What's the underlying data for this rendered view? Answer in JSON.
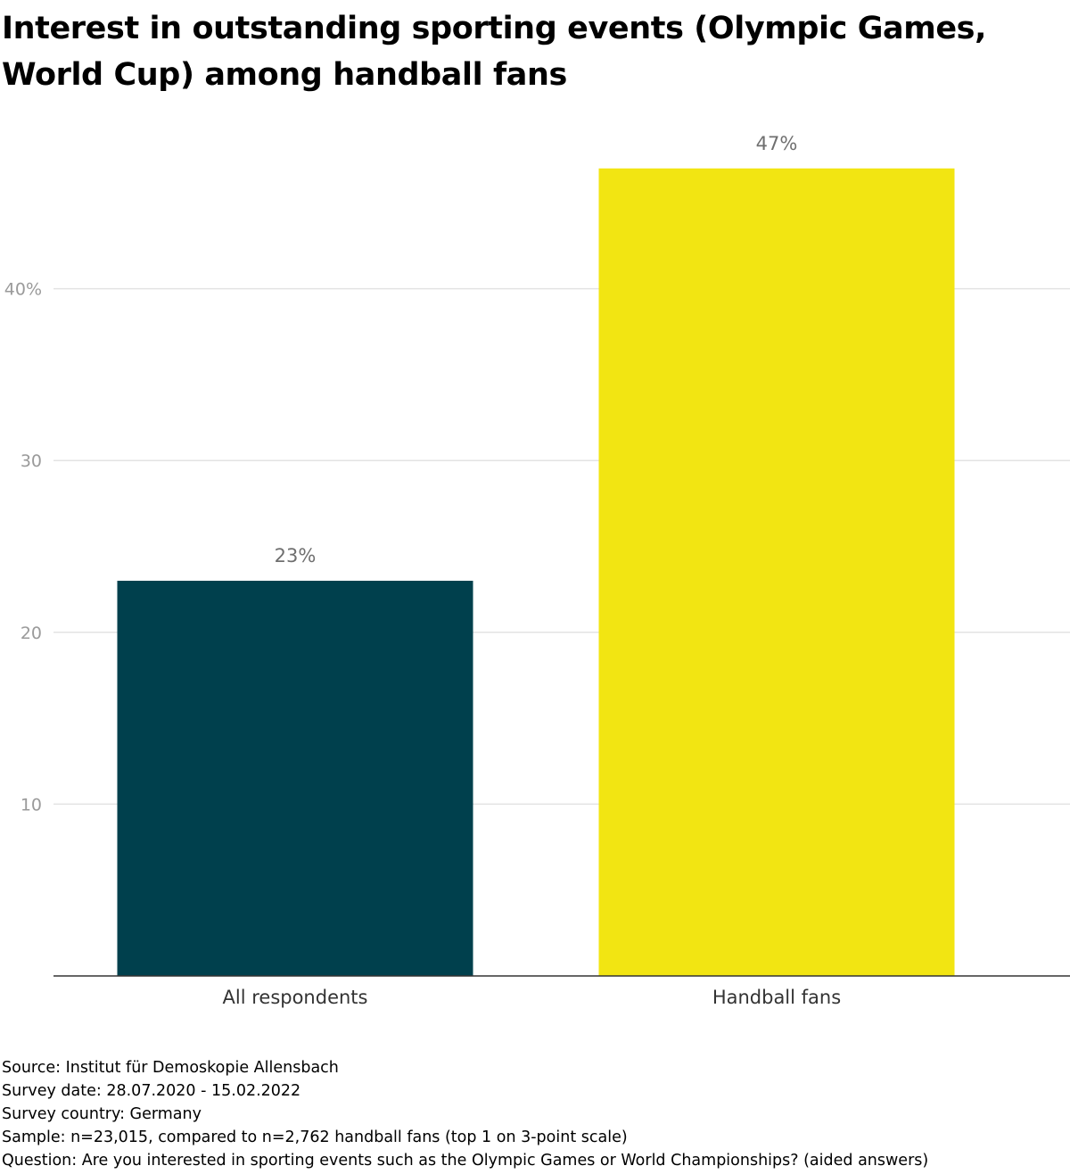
{
  "chart_data": {
    "type": "bar",
    "title": "Interest in outstanding sporting events (Olympic Games, World Cup) among handball fans",
    "categories": [
      "All respondents",
      "Handball fans"
    ],
    "values": [
      23,
      47
    ],
    "value_labels": [
      "23%",
      "47%"
    ],
    "colors": [
      "#00404d",
      "#f2e512"
    ],
    "ylim": [
      0,
      50
    ],
    "yticks": [
      10,
      20,
      30,
      40
    ],
    "ytick_labels": [
      "10",
      "20",
      "30",
      "40%"
    ],
    "grid": true,
    "xlabel": "",
    "ylabel": ""
  },
  "footer": {
    "source": "Source: Institut für Demoskopie Allensbach",
    "survey_date": "Survey date: 28.07.2020 - 15.02.2022",
    "survey_country": "Survey country: Germany",
    "sample": "Sample: n=23,015, compared to n=2,762 handball fans (top 1 on 3-point scale)",
    "question": "Question: Are you interested in sporting events such as the Olympic Games or World Championships? (aided answers)"
  }
}
